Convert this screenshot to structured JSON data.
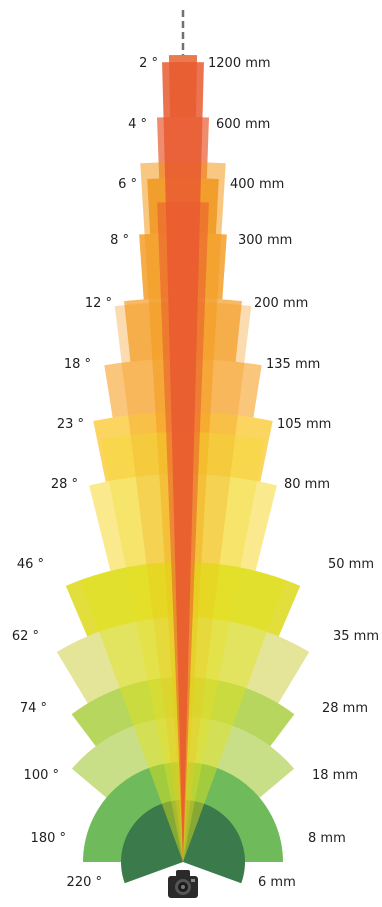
{
  "lenses": [
    {
      "angle_deg": 2,
      "angle_label": "2 °",
      "focal_label": "1200 mm",
      "color": "#ea7a4d"
    },
    {
      "angle_deg": 4,
      "angle_label": "4 °",
      "focal_label": "600 mm",
      "color": "#ef8c6e"
    },
    {
      "angle_deg": 6,
      "angle_label": "6 °",
      "focal_label": "400 mm",
      "color": "#f2a33e"
    },
    {
      "angle_deg": 8,
      "angle_label": "8 °",
      "focal_label": "300 mm",
      "color": "#f5ad4a"
    },
    {
      "angle_deg": 12,
      "angle_label": "12 °",
      "focal_label": "200 mm",
      "color": "#f7b965"
    },
    {
      "angle_deg": 18,
      "angle_label": "18 °",
      "focal_label": "135 mm",
      "color": "#fac67c"
    },
    {
      "angle_deg": 23,
      "angle_label": "23 °",
      "focal_label": "105 mm",
      "color": "#fcd560"
    },
    {
      "angle_deg": 28,
      "angle_label": "28 °",
      "focal_label": "80 mm",
      "color": "#fbe98e"
    },
    {
      "angle_deg": 46,
      "angle_label": "46 °",
      "focal_label": "50 mm",
      "color": "#e2de3c"
    },
    {
      "angle_deg": 62,
      "angle_label": "62 °",
      "focal_label": "35 mm",
      "color": "#e4e599"
    },
    {
      "angle_deg": 74,
      "angle_label": "74 °",
      "focal_label": "28 mm",
      "color": "#b6d65e"
    },
    {
      "angle_deg": 100,
      "angle_label": "100 °",
      "focal_label": "18 mm",
      "color": "#c8df88"
    },
    {
      "angle_deg": 180,
      "angle_label": "180 °",
      "focal_label": "8 mm",
      "color": "#6fbb5b"
    },
    {
      "angle_deg": 220,
      "angle_label": "220 °",
      "focal_label": "6 mm",
      "color": "#3b7a4a"
    }
  ],
  "inner_fill_colors": {
    "inner_red": "#e95a30",
    "inner_orange": "#f39a1e",
    "inner_yellow": "#f2dc2b",
    "inner_green": "#e0e31a"
  },
  "icons": {
    "camera": "camera-icon",
    "axis": "center-axis-dashed-line"
  }
}
